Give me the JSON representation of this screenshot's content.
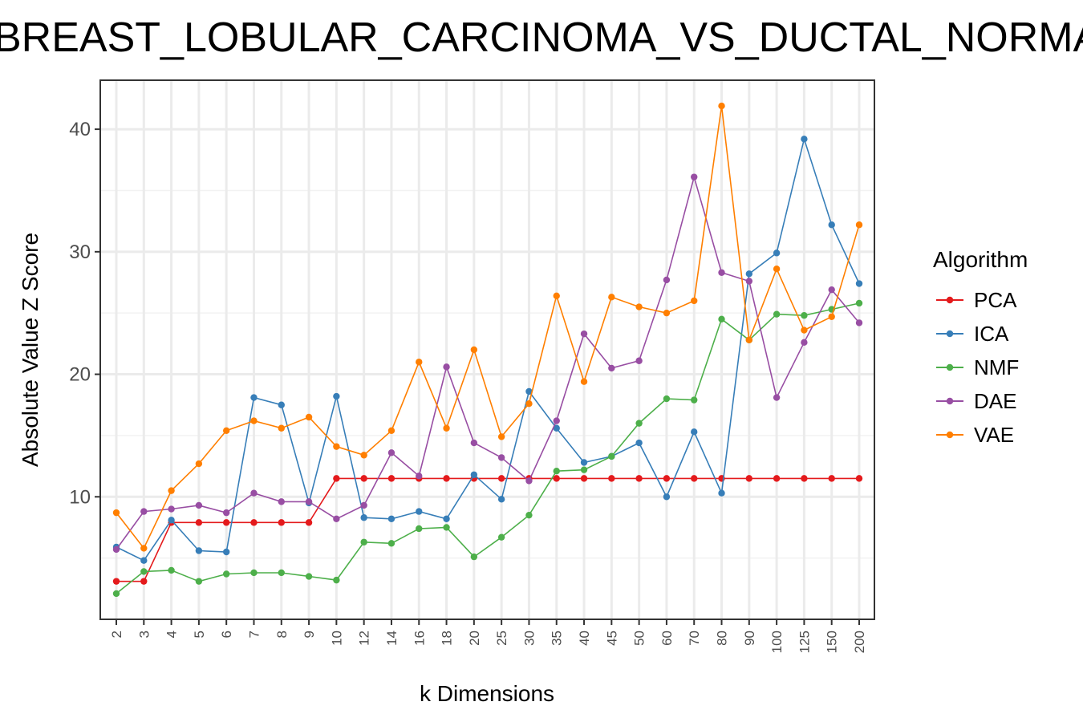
{
  "chart_data": {
    "type": "line",
    "title": "BREAST_LOBULAR_CARCINOMA_VS_DUCTAL_NORMAL",
    "xlabel": "k Dimensions",
    "ylabel": "Absolute Value Z Score",
    "categories": [
      "2",
      "3",
      "4",
      "5",
      "6",
      "7",
      "8",
      "9",
      "10",
      "12",
      "14",
      "16",
      "18",
      "20",
      "25",
      "30",
      "35",
      "40",
      "45",
      "50",
      "60",
      "70",
      "80",
      "90",
      "100",
      "125",
      "150",
      "200"
    ],
    "ylim": [
      0,
      44
    ],
    "yticks": [
      10,
      20,
      30,
      40
    ],
    "grid": true,
    "legend_title": "Algorithm",
    "legend_position": "right",
    "series": [
      {
        "name": "PCA",
        "color": "#e41a1c",
        "values": [
          3.1,
          3.1,
          7.9,
          7.9,
          7.9,
          7.9,
          7.9,
          7.9,
          11.5,
          11.5,
          11.5,
          11.5,
          11.5,
          11.5,
          11.5,
          11.5,
          11.5,
          11.5,
          11.5,
          11.5,
          11.5,
          11.5,
          11.5,
          11.5,
          11.5,
          11.5,
          11.5,
          11.5
        ]
      },
      {
        "name": "ICA",
        "color": "#377eb8",
        "values": [
          5.9,
          4.8,
          8.1,
          5.6,
          5.5,
          18.1,
          17.5,
          9.5,
          18.2,
          8.3,
          8.2,
          8.8,
          8.2,
          11.8,
          9.8,
          18.6,
          15.6,
          12.8,
          13.3,
          14.4,
          10.0,
          15.3,
          10.3,
          28.2,
          29.9,
          39.2,
          32.2,
          27.4
        ]
      },
      {
        "name": "NMF",
        "color": "#4daf4a",
        "values": [
          2.1,
          3.9,
          4.0,
          3.1,
          3.7,
          3.8,
          3.8,
          3.5,
          3.2,
          6.3,
          6.2,
          7.4,
          7.5,
          5.1,
          6.7,
          8.5,
          12.1,
          12.2,
          13.3,
          16.0,
          18.0,
          17.9,
          24.5,
          22.8,
          24.9,
          24.8,
          25.3,
          25.8
        ]
      },
      {
        "name": "DAE",
        "color": "#984ea3",
        "values": [
          5.7,
          8.8,
          9.0,
          9.3,
          8.7,
          10.3,
          9.6,
          9.6,
          8.2,
          9.3,
          13.6,
          11.7,
          20.6,
          14.4,
          13.2,
          11.3,
          16.2,
          23.3,
          20.5,
          21.1,
          27.7,
          36.1,
          28.3,
          27.6,
          18.1,
          22.6,
          26.9,
          24.2
        ]
      },
      {
        "name": "VAE",
        "color": "#ff7f00",
        "values": [
          8.7,
          5.8,
          10.5,
          12.7,
          15.4,
          16.2,
          15.6,
          16.5,
          14.1,
          13.4,
          15.4,
          21.0,
          15.6,
          22.0,
          14.9,
          17.6,
          26.4,
          19.4,
          26.3,
          25.5,
          25.0,
          26.0,
          41.9,
          22.8,
          28.6,
          23.6,
          24.7,
          32.2
        ]
      }
    ]
  }
}
